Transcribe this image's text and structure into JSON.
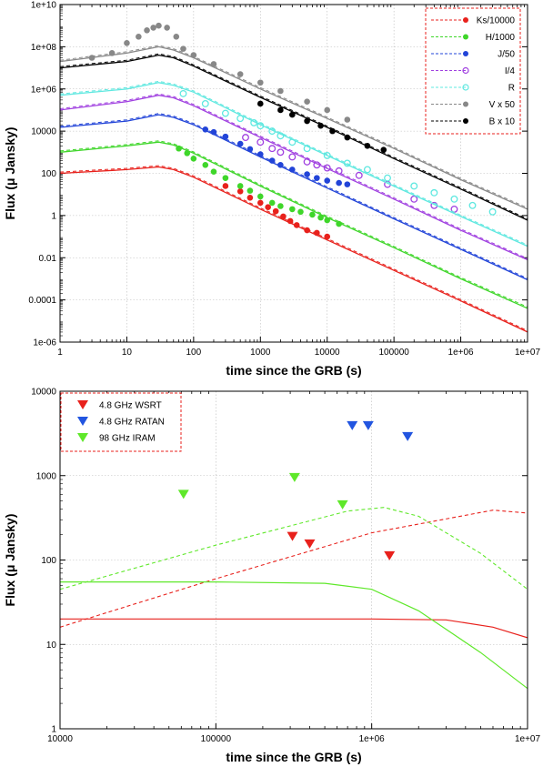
{
  "chart_data": [
    {
      "type": "scatter",
      "xlabel": "time since the GRB (s)",
      "ylabel": "Flux (μ Jansky)",
      "x_scale": "log",
      "y_scale": "log",
      "xlim": [
        1,
        10000000
      ],
      "ylim": [
        1e-06,
        10000000000
      ],
      "x_ticks": [
        {
          "v": 1,
          "label": "1"
        },
        {
          "v": 10,
          "label": "10"
        },
        {
          "v": 100,
          "label": "100"
        },
        {
          "v": 1000,
          "label": "1000"
        },
        {
          "v": 10000,
          "label": "10000"
        },
        {
          "v": 100000,
          "label": "100000"
        },
        {
          "v": 1000000,
          "label": "1e+06"
        },
        {
          "v": 10000000,
          "label": "1e+07"
        }
      ],
      "y_ticks": [
        {
          "v": 1e-06,
          "label": "1e-06"
        },
        {
          "v": 0.0001,
          "label": "0.0001"
        },
        {
          "v": 0.01,
          "label": "0.01"
        },
        {
          "v": 1,
          "label": "1"
        },
        {
          "v": 100,
          "label": "100"
        },
        {
          "v": 10000,
          "label": "10000"
        },
        {
          "v": 1000000,
          "label": "1e+06"
        },
        {
          "v": 100000000,
          "label": "1e+08"
        },
        {
          "v": 10000000000,
          "label": "1e+10"
        }
      ],
      "grid": true,
      "legend_position": "top-right",
      "series": [
        {
          "name": "Ks/10000",
          "color": "#e8211c",
          "marker": "filled-circle",
          "points": [
            [
              300,
              25
            ],
            [
              500,
              14
            ],
            [
              700,
              7
            ],
            [
              1000,
              4
            ],
            [
              1300,
              2.5
            ],
            [
              1700,
              1.6
            ],
            [
              2200,
              0.9
            ],
            [
              2800,
              0.55
            ],
            [
              3500,
              0.35
            ],
            [
              5000,
              0.2
            ],
            [
              7000,
              0.15
            ],
            [
              10000,
              0.1
            ]
          ],
          "model": [
            [
              1,
              100
            ],
            [
              10,
              150
            ],
            [
              30,
              200
            ],
            [
              50,
              150
            ],
            [
              100,
              65
            ],
            [
              1000,
              2
            ],
            [
              10000,
              0.07
            ],
            [
              100000,
              0.0025
            ],
            [
              1000000,
              9e-05
            ],
            [
              10000000,
              3e-06
            ]
          ]
        },
        {
          "name": "H/1000",
          "color": "#3fd62a",
          "marker": "filled-circle",
          "points": [
            [
              60,
              1500
            ],
            [
              80,
              900
            ],
            [
              100,
              500
            ],
            [
              150,
              250
            ],
            [
              200,
              120
            ],
            [
              300,
              60
            ],
            [
              500,
              25
            ],
            [
              700,
              15
            ],
            [
              1000,
              8
            ],
            [
              1500,
              4
            ],
            [
              2000,
              2.8
            ],
            [
              3000,
              2
            ],
            [
              4000,
              1.5
            ],
            [
              6000,
              1.1
            ],
            [
              8000,
              0.8
            ],
            [
              10000,
              0.6
            ],
            [
              15000,
              0.4
            ]
          ],
          "model": [
            [
              1,
              1000
            ],
            [
              10,
              2000
            ],
            [
              30,
              3000
            ],
            [
              50,
              2200
            ],
            [
              100,
              900
            ],
            [
              1000,
              25
            ],
            [
              10000,
              0.8
            ],
            [
              100000,
              0.03
            ],
            [
              1000000,
              0.001
            ],
            [
              10000000,
              4e-05
            ]
          ]
        },
        {
          "name": "J/50",
          "color": "#2244d8",
          "marker": "filled-circle",
          "points": [
            [
              150,
              12000
            ],
            [
              200,
              9000
            ],
            [
              300,
              5500
            ],
            [
              500,
              2500
            ],
            [
              700,
              1400
            ],
            [
              1000,
              800
            ],
            [
              1500,
              400
            ],
            [
              2000,
              250
            ],
            [
              3000,
              150
            ],
            [
              5000,
              90
            ],
            [
              7000,
              60
            ],
            [
              10000,
              45
            ],
            [
              15000,
              35
            ],
            [
              20000,
              30
            ]
          ],
          "model": [
            [
              1,
              15000
            ],
            [
              10,
              30000
            ],
            [
              30,
              60000
            ],
            [
              50,
              45000
            ],
            [
              100,
              20000
            ],
            [
              1000,
              600
            ],
            [
              10000,
              20
            ],
            [
              100000,
              0.7
            ],
            [
              1000000,
              0.025
            ],
            [
              10000000,
              0.0009
            ]
          ]
        },
        {
          "name": "I/4",
          "color": "#a040e0",
          "marker": "open-circle",
          "points": [
            [
              600,
              5000
            ],
            [
              1000,
              3000
            ],
            [
              1500,
              1500
            ],
            [
              2000,
              1000
            ],
            [
              3000,
              600
            ],
            [
              5000,
              350
            ],
            [
              7000,
              250
            ],
            [
              10000,
              180
            ],
            [
              15000,
              130
            ],
            [
              30000,
              80
            ],
            [
              80000,
              30
            ],
            [
              200000,
              6
            ],
            [
              400000,
              3
            ],
            [
              800000,
              2
            ]
          ],
          "model": [
            [
              1,
              100000
            ],
            [
              10,
              250000
            ],
            [
              30,
              500000
            ],
            [
              50,
              380000
            ],
            [
              100,
              160000
            ],
            [
              1000,
              5000
            ],
            [
              10000,
              170
            ],
            [
              100000,
              6
            ],
            [
              1000000,
              0.2
            ],
            [
              10000000,
              0.008
            ]
          ]
        },
        {
          "name": "R",
          "color": "#5fe8e0",
          "marker": "open-circle",
          "points": [
            [
              70,
              600000
            ],
            [
              150,
              200000
            ],
            [
              300,
              70000
            ],
            [
              500,
              40000
            ],
            [
              800,
              25000
            ],
            [
              1000,
              18000
            ],
            [
              1500,
              10000
            ],
            [
              2000,
              6000
            ],
            [
              3000,
              3000
            ],
            [
              5000,
              1500
            ],
            [
              10000,
              700
            ],
            [
              20000,
              300
            ],
            [
              40000,
              150
            ],
            [
              80000,
              60
            ],
            [
              200000,
              25
            ],
            [
              400000,
              12
            ],
            [
              800000,
              6
            ],
            [
              1500000,
              3
            ],
            [
              3000000,
              1.5
            ]
          ],
          "model": [
            [
              1,
              500000
            ],
            [
              10,
              1000000
            ],
            [
              30,
              2000000
            ],
            [
              50,
              1500000
            ],
            [
              100,
              700000
            ],
            [
              1000,
              20000
            ],
            [
              10000,
              700
            ],
            [
              100000,
              25
            ],
            [
              1000000,
              0.9
            ],
            [
              10000000,
              0.035
            ]
          ]
        },
        {
          "name": "V x 50",
          "color": "#888888",
          "marker": "filled-circle",
          "points": [
            [
              3,
              30000000
            ],
            [
              6,
              50000000
            ],
            [
              10,
              150000000
            ],
            [
              15,
              300000000
            ],
            [
              20,
              600000000
            ],
            [
              25,
              800000000
            ],
            [
              30,
              1000000000
            ],
            [
              40,
              800000000
            ],
            [
              55,
              300000000
            ],
            [
              70,
              80000000
            ],
            [
              100,
              40000000
            ],
            [
              200,
              15000000
            ],
            [
              500,
              5000000
            ],
            [
              1000,
              2000000
            ],
            [
              2000,
              800000
            ],
            [
              5000,
              250000
            ],
            [
              10000,
              100000
            ],
            [
              20000,
              35000
            ]
          ],
          "model": [
            [
              1,
              20000000
            ],
            [
              10,
              50000000
            ],
            [
              30,
              100000000
            ],
            [
              50,
              70000000
            ],
            [
              100,
              30000000
            ],
            [
              1000,
              1000000
            ],
            [
              10000,
              40000
            ],
            [
              100000,
              1500
            ],
            [
              1000000,
              50
            ],
            [
              10000000,
              2
            ]
          ]
        },
        {
          "name": "B x 10",
          "color": "#000000",
          "marker": "filled-circle",
          "points": [
            [
              1000,
              200000
            ],
            [
              2000,
              100000
            ],
            [
              3000,
              60000
            ],
            [
              5000,
              30000
            ],
            [
              8000,
              18000
            ],
            [
              12000,
              10000
            ],
            [
              20000,
              5000
            ],
            [
              40000,
              2000
            ],
            [
              70000,
              1300
            ]
          ],
          "model": [
            [
              1,
              10000000
            ],
            [
              10,
              20000000
            ],
            [
              30,
              40000000
            ],
            [
              50,
              30000000
            ],
            [
              100,
              12000000
            ],
            [
              1000,
              400000
            ],
            [
              10000,
              15000
            ],
            [
              100000,
              500
            ],
            [
              1000000,
              18
            ],
            [
              10000000,
              0.6
            ]
          ]
        }
      ]
    },
    {
      "type": "scatter",
      "xlabel": "time since the GRB (s)",
      "ylabel": "Flux (μ Jansky)",
      "x_scale": "log",
      "y_scale": "log",
      "xlim": [
        10000,
        10000000
      ],
      "ylim": [
        1,
        10000
      ],
      "x_ticks": [
        {
          "v": 10000,
          "label": "10000"
        },
        {
          "v": 100000,
          "label": "100000"
        },
        {
          "v": 1000000,
          "label": "1e+06"
        },
        {
          "v": 10000000,
          "label": "1e+07"
        }
      ],
      "y_ticks": [
        {
          "v": 1,
          "label": "1"
        },
        {
          "v": 10,
          "label": "10"
        },
        {
          "v": 100,
          "label": "100"
        },
        {
          "v": 1000,
          "label": "1000"
        },
        {
          "v": 10000,
          "label": "10000"
        }
      ],
      "grid": true,
      "legend_position": "top-left",
      "series": [
        {
          "name": "4.8 GHz WSRT",
          "color": "#e8211c",
          "marker": "triangle-down",
          "points": [
            [
              310000,
              190
            ],
            [
              400000,
              155
            ],
            [
              1300000,
              112
            ]
          ],
          "model_solid": [
            [
              10000,
              20
            ],
            [
              100000,
              20
            ],
            [
              1000000,
              20
            ],
            [
              3000000,
              19.5
            ],
            [
              6000000,
              16
            ],
            [
              10000000,
              12
            ]
          ],
          "model_dashed": [
            [
              10000,
              16
            ],
            [
              100000,
              60
            ],
            [
              1000000,
              210
            ],
            [
              6000000,
              390
            ],
            [
              10000000,
              360
            ]
          ]
        },
        {
          "name": "4.8 GHz RATAN",
          "color": "#2255e0",
          "marker": "triangle-down",
          "points": [
            [
              750000,
              3900
            ],
            [
              950000,
              3900
            ],
            [
              1700000,
              2900
            ]
          ]
        },
        {
          "name": "98 GHz  IRAM",
          "color": "#5fe82a",
          "marker": "triangle-down",
          "points": [
            [
              62000,
              600
            ],
            [
              320000,
              950
            ],
            [
              650000,
              450
            ]
          ],
          "model_solid": [
            [
              10000,
              55
            ],
            [
              100000,
              55
            ],
            [
              500000,
              53
            ],
            [
              1000000,
              45
            ],
            [
              2000000,
              25
            ],
            [
              5000000,
              8
            ],
            [
              10000000,
              3
            ]
          ],
          "model_dashed": [
            [
              10000,
              45
            ],
            [
              100000,
              150
            ],
            [
              700000,
              380
            ],
            [
              1200000,
              420
            ],
            [
              2000000,
              330
            ],
            [
              5000000,
              120
            ],
            [
              10000000,
              45
            ]
          ]
        }
      ]
    }
  ]
}
